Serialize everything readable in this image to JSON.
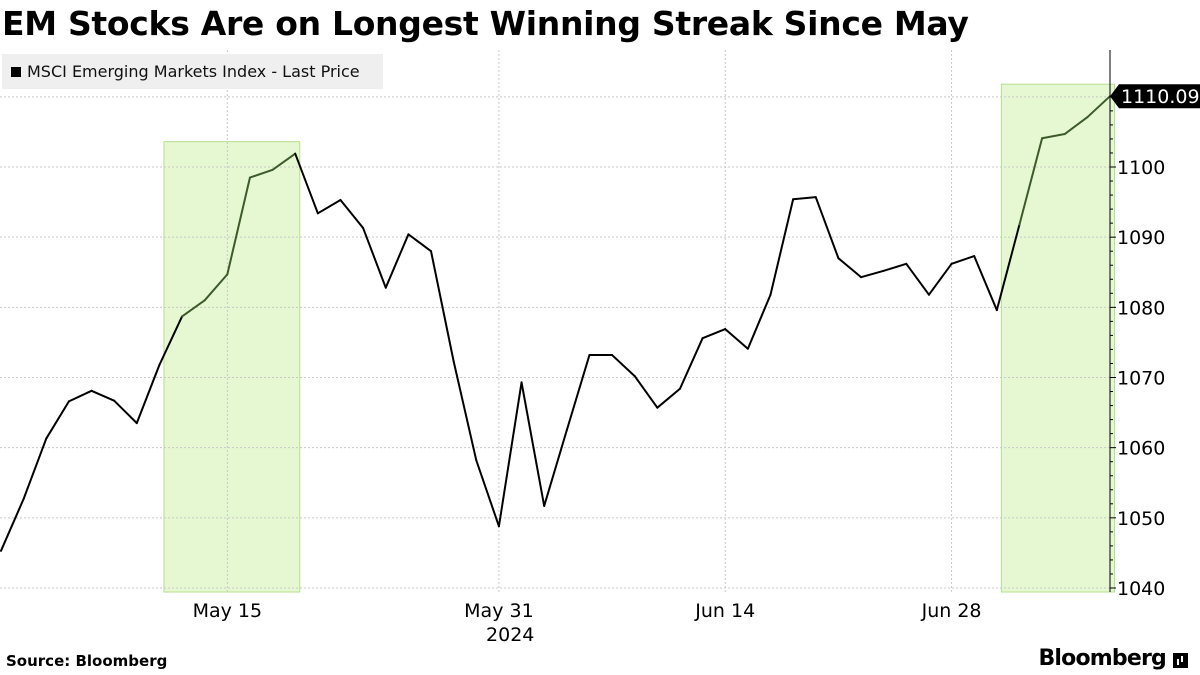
{
  "title": "EM Stocks Are on Longest Winning Streak Since May",
  "footer": {
    "source": "Source: Bloomberg",
    "brand": "Bloomberg"
  },
  "chart_data": {
    "type": "line",
    "title": "EM Stocks Are on Longest Winning Streak Since May",
    "xlabel": "2024",
    "ylabel": "",
    "ylim": [
      1038,
      1115
    ],
    "yticks": [
      1040,
      1050,
      1060,
      1070,
      1080,
      1090,
      1100
    ],
    "grid": true,
    "legend_position": "top-left",
    "x_ticks": [
      {
        "label": "May 15",
        "index": 10
      },
      {
        "label": "May 31",
        "index": 22
      },
      {
        "label": "Jun 14",
        "index": 32
      },
      {
        "label": "Jun 28",
        "index": 42
      }
    ],
    "x_year_label": "2024",
    "colors": {
      "line": "#000000",
      "highlight_fill": "#e6f8d1",
      "highlight_stroke": "#b6df8e",
      "highlighted_line": "#3d5a2a",
      "grid": "#c8c8c8"
    },
    "series": [
      {
        "name": "MSCI Emerging Markets Index - Last Price",
        "values": [
          1045.3,
          1052.7,
          1061.3,
          1066.6,
          1068.1,
          1066.7,
          1063.5,
          1071.8,
          1078.7,
          1081.0,
          1084.7,
          1098.5,
          1099.6,
          1101.9,
          1093.4,
          1095.3,
          1091.3,
          1082.8,
          1090.4,
          1088.0,
          1072.3,
          1058.2,
          1048.8,
          1069.3,
          1051.7,
          1062.5,
          1073.2,
          1073.2,
          1070.2,
          1065.7,
          1068.4,
          1075.6,
          1076.9,
          1074.1,
          1081.8,
          1095.4,
          1095.7,
          1087.0,
          1084.3,
          1085.2,
          1086.2,
          1081.8,
          1086.2,
          1087.3,
          1079.6,
          1091.8,
          1104.1,
          1104.7,
          1107.1,
          1110.09
        ]
      }
    ],
    "highlights": [
      {
        "start_index": 7.2,
        "end_index": 13.2
      },
      {
        "start_index": 44.2,
        "end_index": 49.2
      }
    ],
    "last_value_label": "1110.09"
  }
}
